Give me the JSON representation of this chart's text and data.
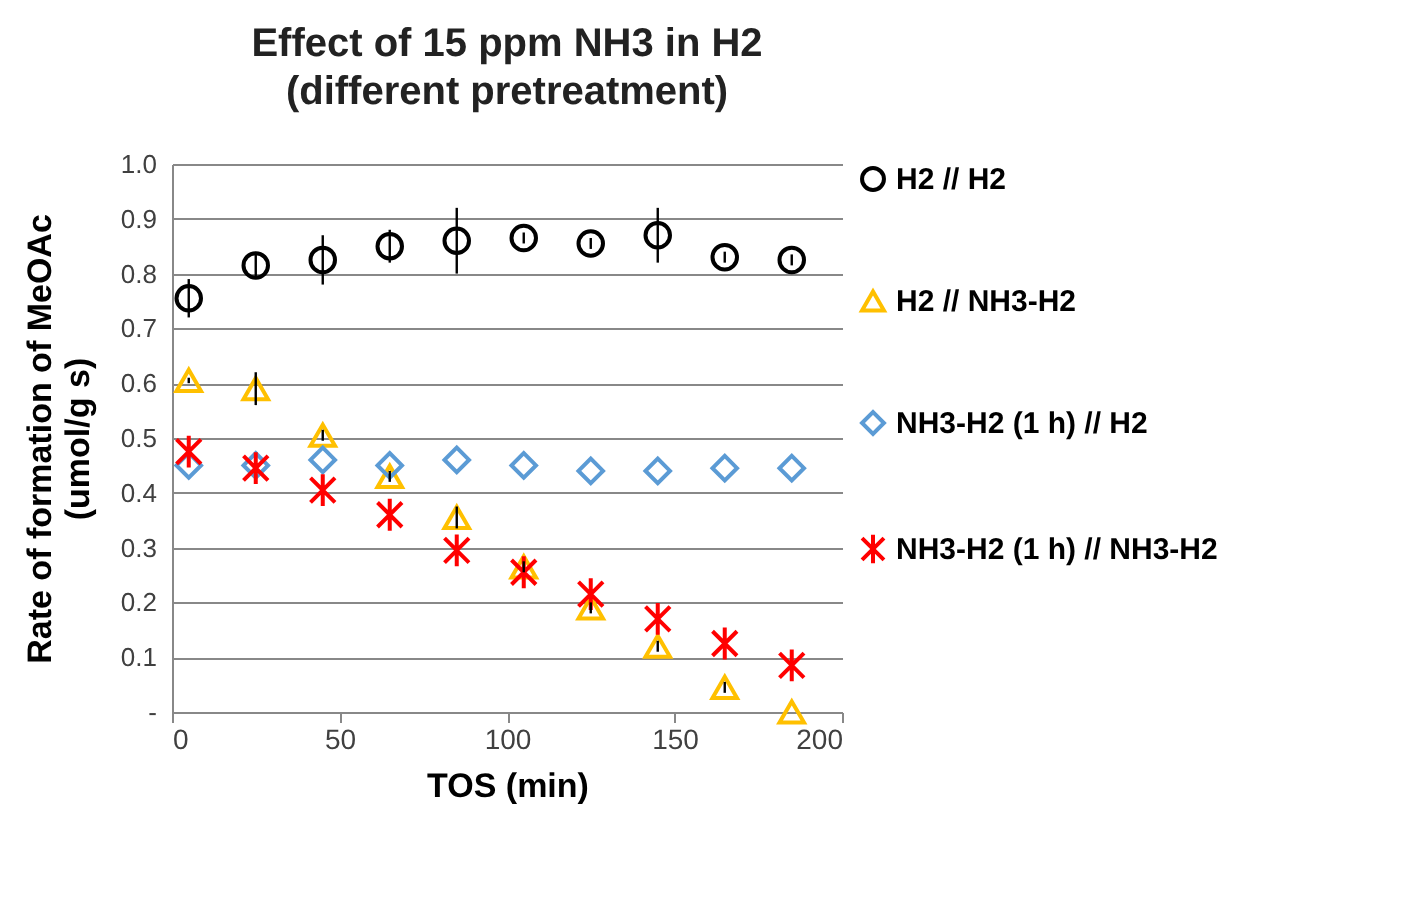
{
  "chart_data": {
    "type": "scatter",
    "title": "Effect of 15 ppm NH3 in H2",
    "subtitle": "(different pretreatment)",
    "xlabel": "TOS (min)",
    "ylabel": "Rate of formation of MeOAc\n(umol/g s)",
    "x": [
      5,
      25,
      45,
      65,
      85,
      105,
      125,
      145,
      165,
      185
    ],
    "series": [
      {
        "name": "H2  //  H2",
        "color": "#000000",
        "marker": "circle",
        "values": [
          0.755,
          0.815,
          0.825,
          0.85,
          0.86,
          0.865,
          0.855,
          0.87,
          0.83,
          0.825
        ],
        "errors": [
          0.035,
          0.02,
          0.045,
          0.03,
          0.06,
          0.01,
          0.01,
          0.05,
          0.01,
          0.01
        ]
      },
      {
        "name": "H2  //  NH3-H2",
        "color": "#ffc000",
        "marker": "triangle",
        "values": [
          0.605,
          0.59,
          0.505,
          0.43,
          0.355,
          0.265,
          0.19,
          0.12,
          0.045,
          0.0
        ],
        "errors": [
          0.005,
          0.03,
          0.01,
          0.01,
          0.02,
          0.01,
          0.01,
          0.01,
          0.01,
          null
        ]
      },
      {
        "name": "NH3-H2 (1 h)  //  H2",
        "color": "#5b9bd5",
        "marker": "diamond",
        "values": [
          0.45,
          0.45,
          0.46,
          0.45,
          0.46,
          0.45,
          0.44,
          0.44,
          0.445,
          0.445
        ]
      },
      {
        "name": "NH3-H2 (1 h)  //  NH3-H2",
        "color": "#ff0000",
        "marker": "cross",
        "values": [
          0.475,
          0.445,
          0.405,
          0.36,
          0.295,
          0.255,
          0.215,
          0.17,
          0.125,
          0.085
        ]
      }
    ],
    "xlim": [
      0,
      200
    ],
    "xticks": [
      0,
      50,
      100,
      150,
      200
    ],
    "ylim": [
      0,
      1
    ],
    "yticks": [
      {
        "value": 0,
        "label": "-"
      },
      0.1,
      0.2,
      0.3,
      0.4,
      0.5,
      0.6,
      0.7,
      0.8,
      0.9,
      {
        "value": 1,
        "label": "1.0"
      }
    ],
    "grid": "y",
    "legend": "right"
  }
}
